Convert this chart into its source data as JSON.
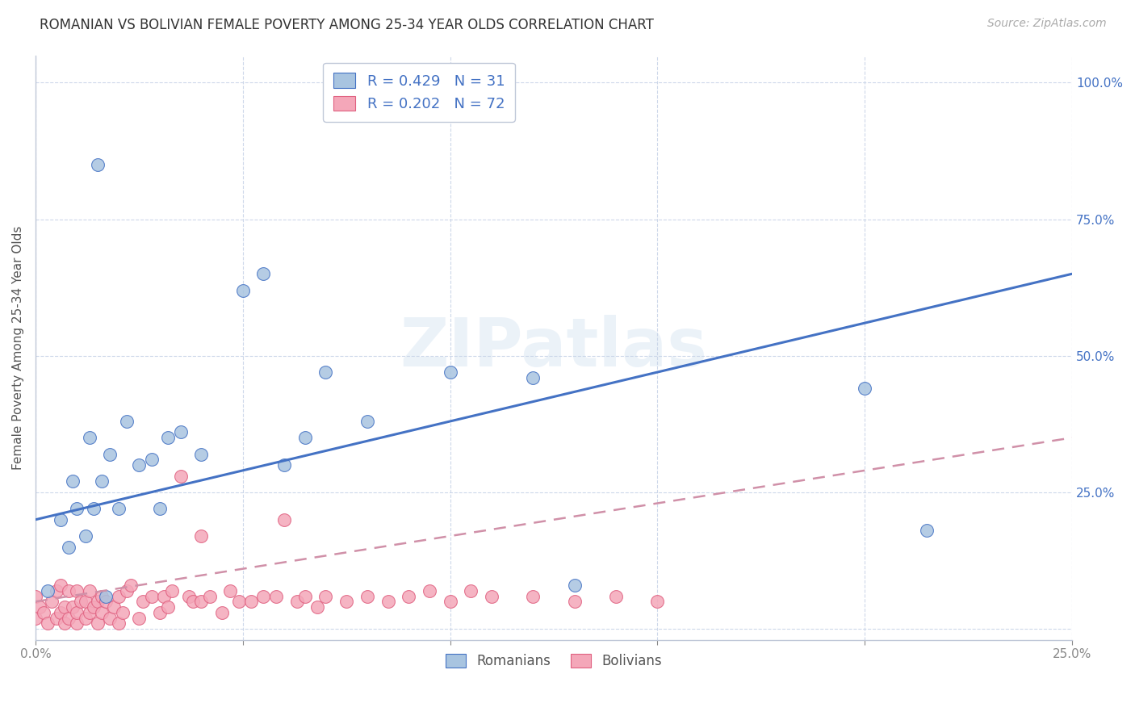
{
  "title": "ROMANIAN VS BOLIVIAN FEMALE POVERTY AMONG 25-34 YEAR OLDS CORRELATION CHART",
  "source": "Source: ZipAtlas.com",
  "ylabel": "Female Poverty Among 25-34 Year Olds",
  "xlim": [
    0.0,
    0.25
  ],
  "ylim": [
    -0.02,
    1.05
  ],
  "romanian_color": "#a8c4e0",
  "bolivian_color": "#f4a7b9",
  "romanian_line_color": "#4472c4",
  "bolivian_line_color": "#e06080",
  "bolivian_line_dashed_color": "#d090a8",
  "romanian_R": 0.429,
  "romanian_N": 31,
  "bolivian_R": 0.202,
  "bolivian_N": 72,
  "watermark_text": "ZIPatlas",
  "legend_text_color": "#4472c4",
  "rom_line_x0": 0.0,
  "rom_line_y0": 0.2,
  "rom_line_x1": 0.25,
  "rom_line_y1": 0.65,
  "bol_line_x0": 0.0,
  "bol_line_y0": 0.05,
  "bol_line_x1": 0.25,
  "bol_line_y1": 0.35,
  "rom_x": [
    0.003,
    0.006,
    0.008,
    0.009,
    0.01,
    0.012,
    0.013,
    0.014,
    0.015,
    0.016,
    0.017,
    0.018,
    0.02,
    0.022,
    0.025,
    0.028,
    0.03,
    0.032,
    0.035,
    0.04,
    0.05,
    0.055,
    0.06,
    0.065,
    0.07,
    0.08,
    0.1,
    0.12,
    0.13,
    0.2,
    0.215
  ],
  "rom_y": [
    0.07,
    0.2,
    0.15,
    0.27,
    0.22,
    0.17,
    0.35,
    0.22,
    0.85,
    0.27,
    0.06,
    0.32,
    0.22,
    0.38,
    0.3,
    0.31,
    0.22,
    0.35,
    0.36,
    0.32,
    0.62,
    0.65,
    0.3,
    0.35,
    0.47,
    0.38,
    0.47,
    0.46,
    0.08,
    0.44,
    0.18
  ],
  "bol_x": [
    0.0,
    0.0,
    0.001,
    0.002,
    0.003,
    0.004,
    0.005,
    0.005,
    0.006,
    0.006,
    0.007,
    0.007,
    0.008,
    0.008,
    0.009,
    0.01,
    0.01,
    0.01,
    0.011,
    0.012,
    0.012,
    0.013,
    0.013,
    0.014,
    0.015,
    0.015,
    0.016,
    0.016,
    0.017,
    0.018,
    0.019,
    0.02,
    0.02,
    0.021,
    0.022,
    0.023,
    0.025,
    0.026,
    0.028,
    0.03,
    0.031,
    0.032,
    0.033,
    0.035,
    0.037,
    0.038,
    0.04,
    0.04,
    0.042,
    0.045,
    0.047,
    0.049,
    0.052,
    0.055,
    0.058,
    0.06,
    0.063,
    0.065,
    0.068,
    0.07,
    0.075,
    0.08,
    0.085,
    0.09,
    0.095,
    0.1,
    0.105,
    0.11,
    0.12,
    0.13,
    0.14,
    0.15
  ],
  "bol_y": [
    0.02,
    0.06,
    0.04,
    0.03,
    0.01,
    0.05,
    0.02,
    0.07,
    0.03,
    0.08,
    0.04,
    0.01,
    0.02,
    0.07,
    0.04,
    0.01,
    0.03,
    0.07,
    0.05,
    0.02,
    0.05,
    0.03,
    0.07,
    0.04,
    0.01,
    0.05,
    0.03,
    0.06,
    0.05,
    0.02,
    0.04,
    0.01,
    0.06,
    0.03,
    0.07,
    0.08,
    0.02,
    0.05,
    0.06,
    0.03,
    0.06,
    0.04,
    0.07,
    0.28,
    0.06,
    0.05,
    0.17,
    0.05,
    0.06,
    0.03,
    0.07,
    0.05,
    0.05,
    0.06,
    0.06,
    0.2,
    0.05,
    0.06,
    0.04,
    0.06,
    0.05,
    0.06,
    0.05,
    0.06,
    0.07,
    0.05,
    0.07,
    0.06,
    0.06,
    0.05,
    0.06,
    0.05
  ],
  "background_color": "#ffffff",
  "grid_color": "#c8d4e8",
  "spine_color": "#c0c8d8"
}
